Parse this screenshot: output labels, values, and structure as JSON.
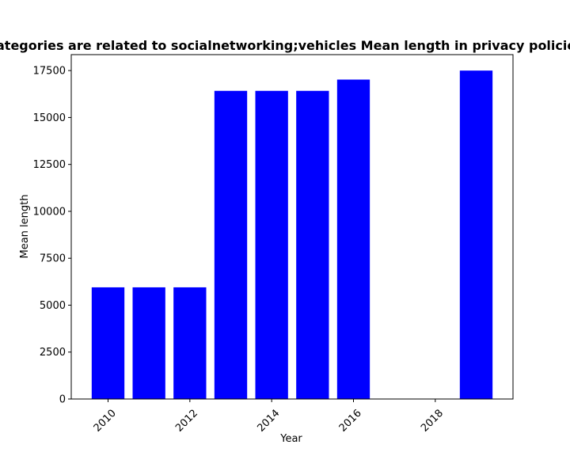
{
  "chart_data": {
    "type": "bar",
    "title": "Categories are related to socialnetworking;vehicles Mean length in privacy policies",
    "xlabel": "Year",
    "ylabel": "Mean length",
    "x": [
      2010,
      2011,
      2012,
      2013,
      2014,
      2015,
      2016,
      2019
    ],
    "values": [
      5950,
      5950,
      5950,
      16420,
      16420,
      16420,
      17020,
      17500
    ],
    "xlim": [
      2009.1,
      2019.9
    ],
    "ylim": [
      0,
      18350
    ],
    "x_ticks": [
      2010,
      2012,
      2014,
      2016,
      2018
    ],
    "y_ticks": [
      0,
      2500,
      5000,
      7500,
      10000,
      12500,
      15000,
      17500
    ],
    "bar_color": "#0000ff",
    "grid": false,
    "legend": "none"
  }
}
